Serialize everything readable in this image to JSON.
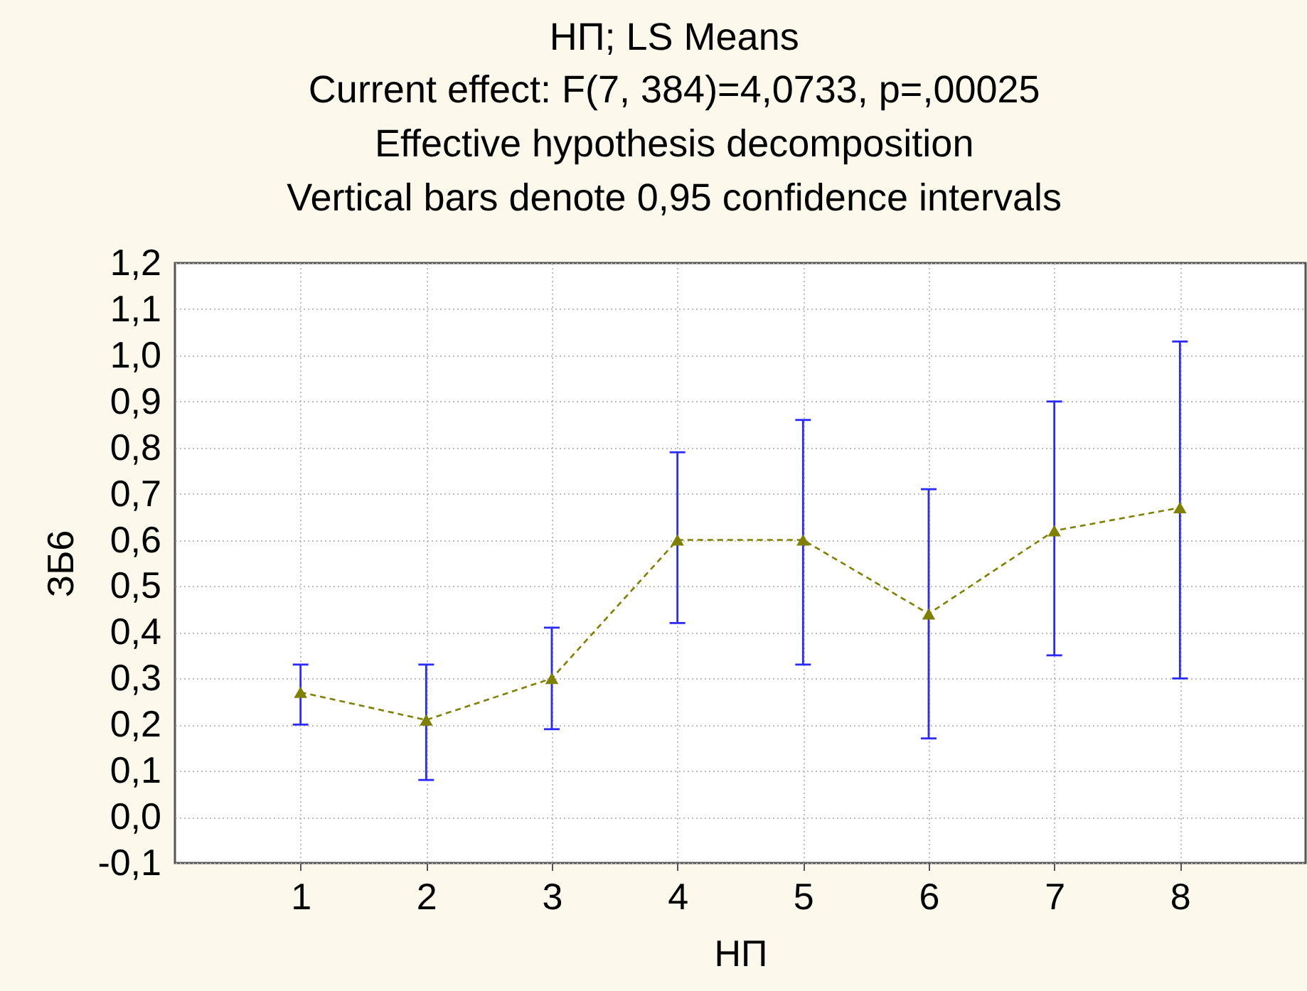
{
  "chart_data": {
    "type": "line",
    "title": "НП; LS Means",
    "subtitle": "Current effect: F(7, 384)=4,0733, p=,00025\nEffective hypothesis decomposition\nVertical bars denote 0,95 confidence intervals",
    "xlabel": "НП",
    "ylabel": "ЗБ6",
    "categories": [
      "1",
      "2",
      "3",
      "4",
      "5",
      "6",
      "7",
      "8"
    ],
    "series": [
      {
        "color": "#808000",
        "values": [
          0.27,
          0.21,
          0.3,
          0.6,
          0.6,
          0.44,
          0.62,
          0.67
        ],
        "errors": [
          [
            0.2,
            0.33
          ],
          [
            0.08,
            0.33
          ],
          [
            0.19,
            0.41
          ],
          [
            0.42,
            0.79
          ],
          [
            0.33,
            0.86
          ],
          [
            0.17,
            0.71
          ],
          [
            0.35,
            0.9
          ],
          [
            0.3,
            1.03
          ]
        ]
      }
    ],
    "ylim": [
      -0.1,
      1.2
    ],
    "yticks": [
      {
        "value": -0.1,
        "label": "-0,1"
      },
      {
        "value": 0,
        "label": "0,0"
      },
      {
        "value": 0.1,
        "label": "0,1"
      },
      {
        "value": 0.2,
        "label": "0,2"
      },
      {
        "value": 0.3,
        "label": "0,3"
      },
      {
        "value": 0.4,
        "label": "0,4"
      },
      {
        "value": 0.5,
        "label": "0,5"
      },
      {
        "value": 0.6,
        "label": "0,6"
      },
      {
        "value": 0.7,
        "label": "0,7"
      },
      {
        "value": 0.8,
        "label": "0,8"
      },
      {
        "value": 0.9,
        "label": "0,9"
      },
      {
        "value": 1.0,
        "label": "1,0"
      },
      {
        "value": 1.1,
        "label": "1,1"
      },
      {
        "value": 1.2,
        "label": "1,2"
      }
    ],
    "grid": true,
    "marker": "triangle",
    "line_style": "dashed"
  }
}
